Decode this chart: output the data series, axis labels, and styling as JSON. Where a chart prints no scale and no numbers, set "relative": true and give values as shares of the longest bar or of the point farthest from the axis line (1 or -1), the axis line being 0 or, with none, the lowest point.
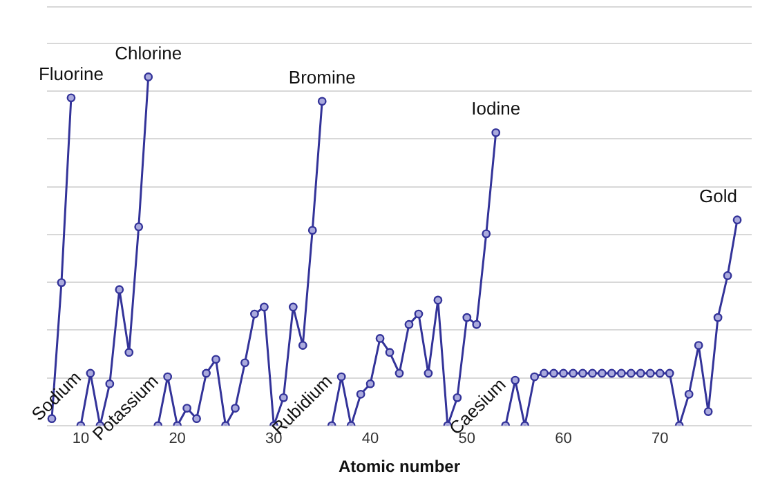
{
  "chart_data": {
    "type": "line",
    "xlabel": "Atomic number",
    "relative": true,
    "xlim": [
      6.5,
      79.5
    ],
    "xticks": [
      10,
      20,
      30,
      40,
      50,
      60,
      70
    ],
    "grid": "y",
    "marker": "circle",
    "line_style": "solid",
    "series": [
      {
        "color": "#333399",
        "x": [
          7,
          8,
          9
        ],
        "values": [
          0.02,
          0.41,
          0.94
        ]
      },
      {
        "color": "#333399",
        "x": [
          10,
          11,
          12,
          13,
          14,
          15,
          16,
          17
        ],
        "values": [
          0,
          0.15,
          0,
          0.12,
          0.39,
          0.21,
          0.57,
          1
        ]
      },
      {
        "color": "#333399",
        "x": [
          18,
          19,
          20,
          21,
          22,
          23,
          24,
          25,
          26,
          27,
          28,
          29,
          30,
          31,
          32,
          33,
          34,
          35
        ],
        "values": [
          0,
          0.14,
          0,
          0.05,
          0.02,
          0.15,
          0.19,
          0,
          0.05,
          0.18,
          0.32,
          0.34,
          0,
          0.08,
          0.34,
          0.23,
          0.56,
          0.93
        ]
      },
      {
        "color": "#333399",
        "x": [
          36,
          37,
          38,
          39,
          40,
          41,
          42,
          43,
          44,
          45,
          46,
          47,
          48,
          49,
          50,
          51,
          52,
          53
        ],
        "values": [
          0,
          0.14,
          0,
          0.09,
          0.12,
          0.25,
          0.21,
          0.15,
          0.29,
          0.32,
          0.15,
          0.36,
          0,
          0.08,
          0.31,
          0.29,
          0.55,
          0.84
        ]
      },
      {
        "color": "#333399",
        "x": [
          54,
          55,
          56,
          57,
          58,
          59,
          60,
          61,
          62,
          63,
          64,
          65,
          66,
          67,
          68,
          69,
          70,
          71,
          72,
          73,
          74,
          75,
          76,
          77,
          78
        ],
        "values": [
          0,
          0.13,
          0,
          0.14,
          0.15,
          0.15,
          0.15,
          0.15,
          0.15,
          0.15,
          0.15,
          0.15,
          0.15,
          0.15,
          0.15,
          0.15,
          0.15,
          0.15,
          0,
          0.09,
          0.23,
          0.04,
          0.31,
          0.43,
          0.59
        ]
      }
    ],
    "annotations": [
      {
        "text": "Fluorine",
        "x": 9,
        "y": 0.94
      },
      {
        "text": "Chlorine",
        "x": 17,
        "y": 1
      },
      {
        "text": "Bromine",
        "x": 35,
        "y": 0.93
      },
      {
        "text": "Iodine",
        "x": 53,
        "y": 0.84
      },
      {
        "text": "Gold",
        "x": 78,
        "y": 0.59
      },
      {
        "text": "Sodium",
        "x": 11,
        "y": 0.15
      },
      {
        "text": "Potassium",
        "x": 19,
        "y": 0.14
      },
      {
        "text": "Rubidium",
        "x": 37,
        "y": 0.14
      },
      {
        "text": "Caesium",
        "x": 55,
        "y": 0.13
      }
    ]
  }
}
